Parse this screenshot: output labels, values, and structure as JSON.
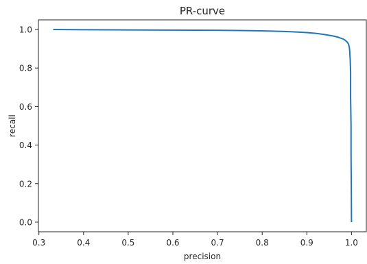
{
  "chart_data": {
    "type": "line",
    "title": "PR-curve",
    "xlabel": "precision",
    "ylabel": "recall",
    "xlim": [
      0.3,
      1.0
    ],
    "ylim": [
      0.0,
      1.0
    ],
    "x_ticks": [
      "0.3",
      "0.4",
      "0.5",
      "0.6",
      "0.7",
      "0.8",
      "0.9",
      "1.0"
    ],
    "y_ticks": [
      "0.0",
      "0.2",
      "0.4",
      "0.6",
      "0.8",
      "1.0"
    ],
    "grid": false,
    "series": [
      {
        "color": "#1f77b4",
        "x": [
          0.332,
          0.4,
          0.5,
          0.6,
          0.7,
          0.75,
          0.8,
          0.85,
          0.88,
          0.9,
          0.92,
          0.94,
          0.96,
          0.97,
          0.98,
          0.985,
          0.99,
          0.993,
          0.995,
          0.996,
          0.997,
          0.998,
          0.998,
          0.999,
          0.999,
          0.9995,
          0.9998,
          0.9999,
          1.0
        ],
        "y": [
          1.0,
          0.999,
          0.998,
          0.997,
          0.996,
          0.995,
          0.993,
          0.99,
          0.987,
          0.984,
          0.98,
          0.974,
          0.966,
          0.96,
          0.952,
          0.946,
          0.936,
          0.926,
          0.91,
          0.89,
          0.85,
          0.78,
          0.65,
          0.5,
          0.35,
          0.2,
          0.08,
          0.02,
          0.0
        ]
      }
    ]
  }
}
